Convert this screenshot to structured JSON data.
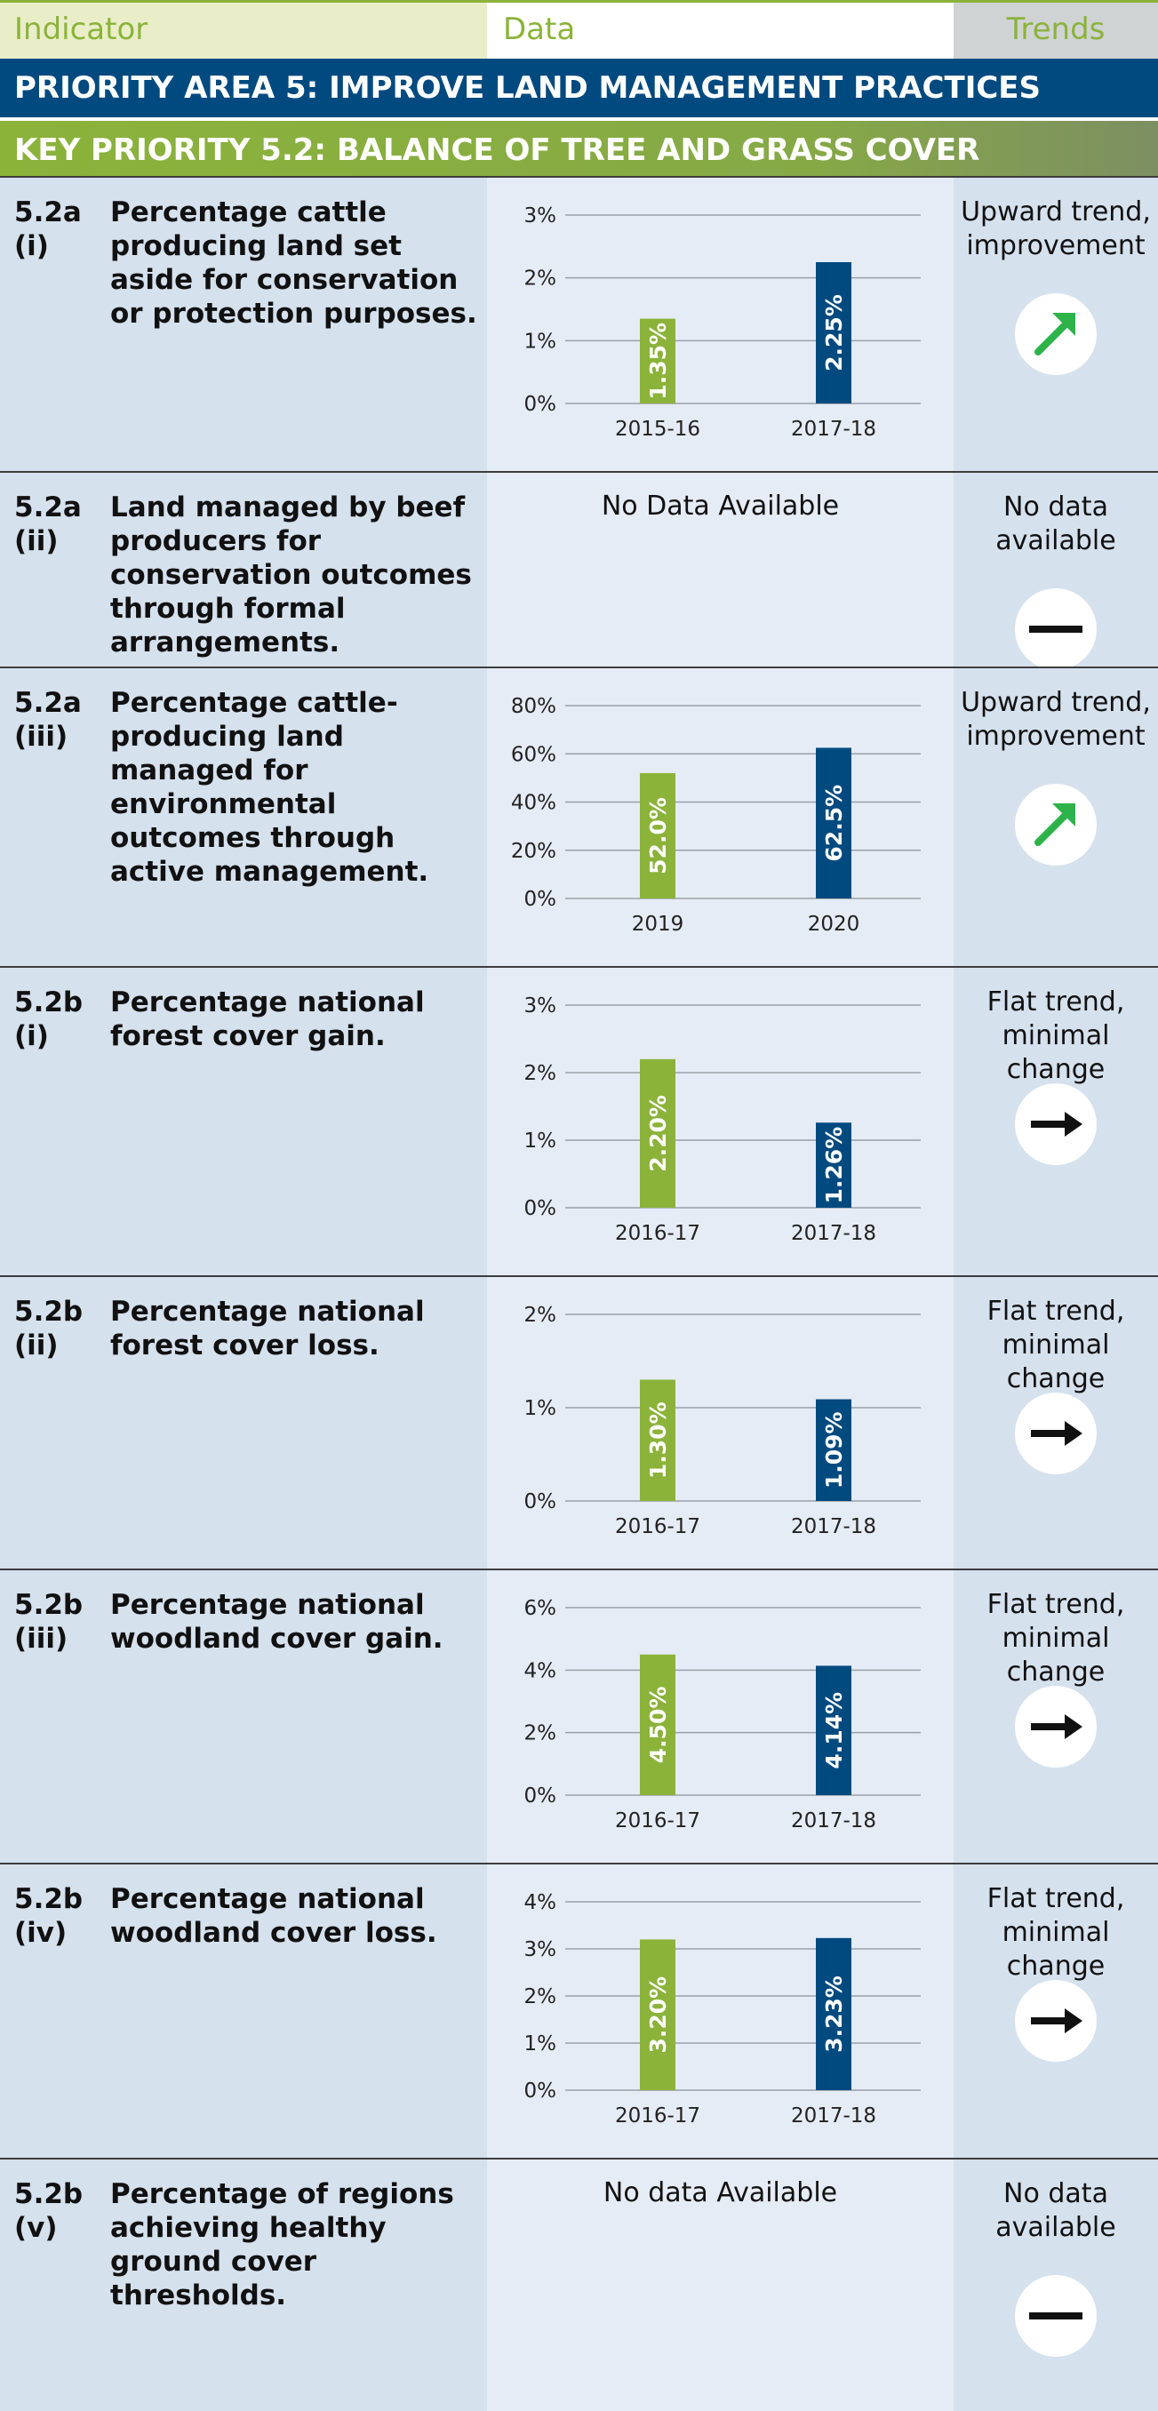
{
  "header": {
    "indicator": "Indicator",
    "data": "Data",
    "trends": "Trends"
  },
  "priority_area": "PRIORITY AREA 5: IMPROVE LAND MANAGEMENT PRACTICES",
  "key_priority": "KEY PRIORITY 5.2: BALANCE OF TREE AND GRASS COVER",
  "colors": {
    "green": "#8bb33a",
    "navy": "#004a7f"
  },
  "rows": [
    {
      "code": "5.2a\n(i)",
      "description": "Percentage cattle producing land set aside for conservation or protection purposes.",
      "trend_text": "Upward trend, improvement",
      "trend_icon": "arrow-up-right-icon",
      "no_data": ""
    },
    {
      "code": "5.2a\n(ii)",
      "description": "Land managed by beef producers for conservation outcomes through formal arrangements.",
      "trend_text": "No data available",
      "trend_icon": "dash-icon",
      "no_data": "No Data Available"
    },
    {
      "code": "5.2a\n(iii)",
      "description": "Percentage cattle-producing land managed for environmental outcomes through active management.",
      "trend_text": "Upward trend, improvement",
      "trend_icon": "arrow-up-right-icon",
      "no_data": ""
    },
    {
      "code": "5.2b\n(i)",
      "description": "Percentage national forest cover gain.",
      "trend_text": "Flat trend, minimal change",
      "trend_icon": "arrow-right-icon",
      "no_data": ""
    },
    {
      "code": "5.2b\n(ii)",
      "description": "Percentage national forest cover loss.",
      "trend_text": "Flat trend, minimal change",
      "trend_icon": "arrow-right-icon",
      "no_data": ""
    },
    {
      "code": "5.2b\n(iii)",
      "description": "Percentage national woodland cover gain.",
      "trend_text": "Flat trend, minimal change",
      "trend_icon": "arrow-right-icon",
      "no_data": ""
    },
    {
      "code": "5.2b\n(iv)",
      "description": "Percentage national woodland cover loss.",
      "trend_text": "Flat trend, minimal change",
      "trend_icon": "arrow-right-icon",
      "no_data": ""
    },
    {
      "code": "5.2b\n(v)",
      "description": "Percentage of regions achieving healthy ground cover thresholds.",
      "trend_text": "No data available",
      "trend_icon": "dash-icon",
      "no_data": "No data Available"
    }
  ],
  "chart_data": [
    {
      "type": "bar",
      "row": 0,
      "categories": [
        "2015-16",
        "2017-18"
      ],
      "values": [
        1.35,
        2.25
      ],
      "labels": [
        "1.35%",
        "2.25%"
      ],
      "yticks": [
        "0%",
        "1%",
        "2%",
        "3%"
      ],
      "ylim": [
        0,
        3
      ]
    },
    {
      "type": "bar",
      "row": 2,
      "categories": [
        "2019",
        "2020"
      ],
      "values": [
        52.0,
        62.5
      ],
      "labels": [
        "52.0%",
        "62.5%"
      ],
      "yticks": [
        "0%",
        "20%",
        "40%",
        "60%",
        "80%"
      ],
      "ylim": [
        0,
        80
      ]
    },
    {
      "type": "bar",
      "row": 3,
      "categories": [
        "2016-17",
        "2017-18"
      ],
      "values": [
        2.2,
        1.26
      ],
      "labels": [
        "2.20%",
        "1.26%"
      ],
      "yticks": [
        "0%",
        "1%",
        "2%",
        "3%"
      ],
      "ylim": [
        0,
        3
      ]
    },
    {
      "type": "bar",
      "row": 4,
      "categories": [
        "2016-17",
        "2017-18"
      ],
      "values": [
        1.3,
        1.09
      ],
      "labels": [
        "1.30%",
        "1.09%"
      ],
      "yticks": [
        "0%",
        "1%",
        "2%"
      ],
      "ylim": [
        0,
        2
      ]
    },
    {
      "type": "bar",
      "row": 5,
      "categories": [
        "2016-17",
        "2017-18"
      ],
      "values": [
        4.5,
        4.14
      ],
      "labels": [
        "4.50%",
        "4.14%"
      ],
      "yticks": [
        "0%",
        "2%",
        "4%",
        "6%"
      ],
      "ylim": [
        0,
        6
      ]
    },
    {
      "type": "bar",
      "row": 6,
      "categories": [
        "2016-17",
        "2017-18"
      ],
      "values": [
        3.2,
        3.23
      ],
      "labels": [
        "3.20%",
        "3.23%"
      ],
      "yticks": [
        "0%",
        "1%",
        "2%",
        "3%",
        "4%"
      ],
      "ylim": [
        0,
        4
      ]
    }
  ]
}
